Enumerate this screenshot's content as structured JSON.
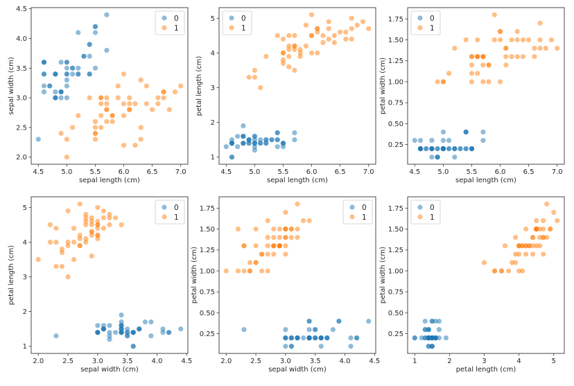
{
  "colors": {
    "class_0": "#1f77b4",
    "class_1": "#ff7f0e"
  },
  "chart_data": {
    "type": "scatter",
    "features": [
      "sepal length (cm)",
      "sepal width (cm)",
      "petal length (cm)",
      "petal width (cm)"
    ],
    "feature_limits": [
      [
        4.375,
        7.125
      ],
      [
        1.88,
        4.52
      ],
      [
        0.795,
        5.305
      ],
      [
        0.015,
        1.885
      ]
    ],
    "feature_ticks": [
      {
        "values": [
          4.5,
          5.0,
          5.5,
          6.0,
          6.5,
          7.0
        ],
        "labels": [
          "4.5",
          "5.0",
          "5.5",
          "6.0",
          "6.5",
          "7.0"
        ]
      },
      {
        "values": [
          2.0,
          2.5,
          3.0,
          3.5,
          4.0,
          4.5
        ],
        "labels": [
          "2.0",
          "2.5",
          "3.0",
          "3.5",
          "4.0",
          "4.5"
        ]
      },
      {
        "values": [
          1,
          2,
          3,
          4,
          5
        ],
        "labels": [
          "1",
          "2",
          "3",
          "4",
          "5"
        ]
      },
      {
        "values": [
          0.25,
          0.5,
          0.75,
          1.0,
          1.25,
          1.5,
          1.75
        ],
        "labels": [
          "0.25",
          "0.50",
          "0.75",
          "1.00",
          "1.25",
          "1.50",
          "1.75"
        ]
      }
    ],
    "legend_labels": [
      "0",
      "1"
    ],
    "subplots": [
      {
        "x": 0,
        "y": 1,
        "legend": "top-right"
      },
      {
        "x": 0,
        "y": 2,
        "legend": "top-left"
      },
      {
        "x": 0,
        "y": 3,
        "legend": "top-left"
      },
      {
        "x": 1,
        "y": 2,
        "legend": "top-right"
      },
      {
        "x": 1,
        "y": 3,
        "legend": "top-right"
      },
      {
        "x": 2,
        "y": 3,
        "legend": "top-left"
      }
    ],
    "series": [
      {
        "name": "0",
        "points": [
          [
            5.1,
            3.5,
            1.4,
            0.2
          ],
          [
            4.9,
            3.0,
            1.4,
            0.2
          ],
          [
            4.7,
            3.2,
            1.3,
            0.2
          ],
          [
            4.6,
            3.1,
            1.5,
            0.2
          ],
          [
            5.0,
            3.6,
            1.4,
            0.2
          ],
          [
            5.4,
            3.9,
            1.7,
            0.4
          ],
          [
            4.6,
            3.4,
            1.4,
            0.3
          ],
          [
            5.0,
            3.4,
            1.5,
            0.2
          ],
          [
            4.9,
            3.1,
            1.5,
            0.1
          ],
          [
            5.4,
            3.7,
            1.5,
            0.2
          ],
          [
            4.8,
            3.4,
            1.6,
            0.2
          ],
          [
            4.8,
            3.0,
            1.4,
            0.1
          ],
          [
            5.7,
            4.4,
            1.5,
            0.4
          ],
          [
            5.4,
            3.9,
            1.3,
            0.4
          ],
          [
            5.1,
            3.5,
            1.4,
            0.3
          ],
          [
            5.7,
            3.8,
            1.7,
            0.3
          ],
          [
            5.4,
            3.4,
            1.7,
            0.2
          ],
          [
            4.6,
            3.6,
            1.0,
            0.2
          ],
          [
            4.8,
            3.4,
            1.9,
            0.2
          ],
          [
            5.0,
            3.0,
            1.6,
            0.2
          ],
          [
            5.0,
            3.4,
            1.6,
            0.4
          ],
          [
            5.2,
            3.5,
            1.5,
            0.2
          ],
          [
            5.2,
            3.4,
            1.4,
            0.2
          ],
          [
            4.7,
            3.2,
            1.6,
            0.2
          ],
          [
            4.8,
            3.1,
            1.6,
            0.2
          ],
          [
            5.4,
            3.4,
            1.5,
            0.4
          ],
          [
            5.2,
            4.1,
            1.5,
            0.1
          ],
          [
            5.5,
            4.2,
            1.4,
            0.2
          ],
          [
            4.9,
            3.1,
            1.5,
            0.2
          ],
          [
            5.0,
            3.2,
            1.2,
            0.2
          ],
          [
            5.5,
            3.5,
            1.3,
            0.2
          ],
          [
            4.9,
            3.6,
            1.4,
            0.1
          ],
          [
            5.1,
            3.4,
            1.5,
            0.2
          ],
          [
            5.0,
            3.5,
            1.3,
            0.3
          ],
          [
            4.5,
            2.3,
            1.3,
            0.3
          ],
          [
            4.8,
            3.0,
            1.4,
            0.3
          ],
          [
            4.6,
            3.2,
            1.4,
            0.2
          ],
          [
            5.3,
            3.7,
            1.5,
            0.2
          ],
          [
            5.0,
            3.3,
            1.4,
            0.2
          ],
          [
            5.5,
            4.1,
            1.4,
            0.2
          ],
          [
            4.6,
            3.6,
            1.4,
            0.2
          ],
          [
            4.8,
            3.0,
            1.4,
            0.2
          ],
          [
            4.6,
            3.4,
            1.4,
            0.2
          ],
          [
            5.3,
            3.7,
            1.5,
            0.2
          ],
          [
            5.0,
            3.6,
            1.4,
            0.2
          ],
          [
            4.8,
            3.4,
            1.6,
            0.2
          ],
          [
            5.2,
            3.4,
            1.4,
            0.2
          ],
          [
            4.6,
            3.6,
            1.0,
            0.2
          ],
          [
            5.5,
            4.2,
            1.4,
            0.2
          ],
          [
            4.9,
            3.1,
            1.5,
            0.1
          ]
        ]
      },
      {
        "name": "1",
        "points": [
          [
            7.0,
            3.2,
            4.7,
            1.4
          ],
          [
            6.4,
            3.2,
            4.5,
            1.5
          ],
          [
            6.9,
            3.1,
            4.9,
            1.5
          ],
          [
            5.5,
            2.3,
            4.0,
            1.3
          ],
          [
            6.5,
            2.8,
            4.6,
            1.5
          ],
          [
            5.7,
            2.8,
            4.5,
            1.3
          ],
          [
            6.3,
            3.3,
            4.7,
            1.6
          ],
          [
            4.9,
            2.4,
            3.3,
            1.0
          ],
          [
            6.6,
            2.9,
            4.6,
            1.3
          ],
          [
            5.2,
            2.7,
            3.9,
            1.4
          ],
          [
            5.0,
            2.0,
            3.5,
            1.0
          ],
          [
            5.9,
            3.0,
            4.2,
            1.5
          ],
          [
            6.0,
            2.2,
            4.0,
            1.0
          ],
          [
            6.1,
            2.9,
            4.7,
            1.4
          ],
          [
            5.6,
            2.9,
            3.6,
            1.3
          ],
          [
            6.7,
            3.1,
            4.4,
            1.4
          ],
          [
            5.6,
            3.0,
            4.5,
            1.5
          ],
          [
            5.8,
            2.7,
            4.1,
            1.0
          ],
          [
            6.2,
            2.2,
            4.5,
            1.5
          ],
          [
            5.6,
            2.5,
            3.9,
            1.1
          ],
          [
            5.9,
            3.2,
            4.8,
            1.8
          ],
          [
            6.1,
            2.8,
            4.0,
            1.3
          ],
          [
            6.3,
            2.5,
            4.9,
            1.5
          ],
          [
            6.1,
            2.8,
            4.7,
            1.2
          ],
          [
            6.4,
            2.9,
            4.3,
            1.3
          ],
          [
            6.6,
            3.0,
            4.4,
            1.4
          ],
          [
            6.8,
            2.8,
            4.8,
            1.4
          ],
          [
            6.7,
            3.0,
            5.0,
            1.7
          ],
          [
            6.0,
            2.9,
            4.5,
            1.5
          ],
          [
            5.7,
            2.6,
            3.5,
            1.0
          ],
          [
            5.5,
            2.4,
            3.8,
            1.1
          ],
          [
            5.5,
            2.4,
            3.7,
            1.0
          ],
          [
            5.8,
            2.7,
            3.9,
            1.2
          ],
          [
            6.0,
            2.7,
            5.1,
            1.6
          ],
          [
            5.4,
            3.0,
            4.5,
            1.5
          ],
          [
            6.0,
            3.4,
            4.5,
            1.6
          ],
          [
            6.7,
            3.1,
            4.7,
            1.5
          ],
          [
            6.3,
            2.3,
            4.4,
            1.3
          ],
          [
            5.6,
            3.0,
            4.1,
            1.3
          ],
          [
            5.5,
            2.5,
            4.0,
            1.3
          ],
          [
            5.5,
            2.6,
            4.4,
            1.2
          ],
          [
            6.1,
            3.0,
            4.6,
            1.4
          ],
          [
            5.8,
            2.6,
            4.0,
            1.2
          ],
          [
            5.0,
            2.3,
            3.3,
            1.0
          ],
          [
            5.6,
            2.7,
            4.2,
            1.3
          ],
          [
            5.7,
            3.0,
            4.2,
            1.2
          ],
          [
            5.7,
            2.9,
            4.2,
            1.3
          ],
          [
            6.2,
            2.9,
            4.3,
            1.3
          ],
          [
            5.1,
            2.5,
            3.0,
            1.1
          ],
          [
            5.7,
            2.8,
            4.1,
            1.3
          ]
        ]
      }
    ]
  }
}
